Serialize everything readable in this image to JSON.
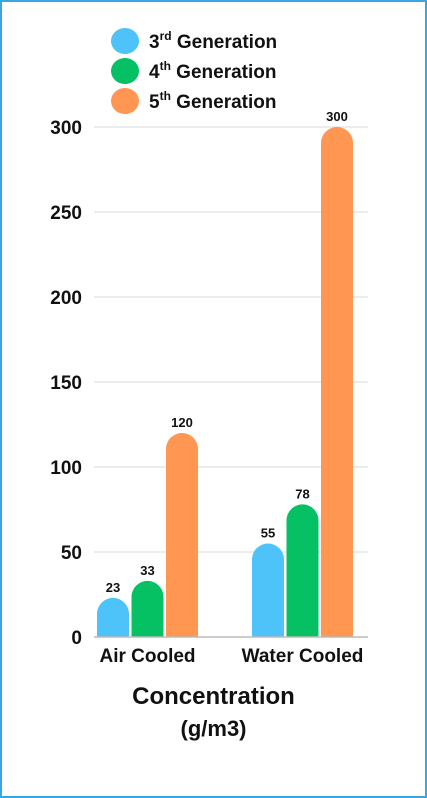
{
  "chart_data": {
    "type": "bar",
    "categories": [
      "Air Cooled",
      "Water Cooled"
    ],
    "series": [
      {
        "name": "3rd Generation",
        "ordinal": "3",
        "suffix": "rd",
        "rest": "Generation",
        "color": "#4dc3fa",
        "values": [
          23,
          55
        ]
      },
      {
        "name": "4th Generation",
        "ordinal": "4",
        "suffix": "th",
        "rest": "Generation",
        "color": "#05c164",
        "values": [
          33,
          78
        ]
      },
      {
        "name": "5th Generation",
        "ordinal": "5",
        "suffix": "th",
        "rest": "Generation",
        "color": "#ff9651",
        "values": [
          120,
          300
        ]
      }
    ],
    "ylim": [
      0,
      300
    ],
    "yticks": [
      0,
      50,
      100,
      150,
      200,
      250,
      300
    ],
    "grid": true,
    "legend": "top"
  },
  "caption": {
    "line1": "Concentration",
    "line2": "(g/m3)"
  }
}
